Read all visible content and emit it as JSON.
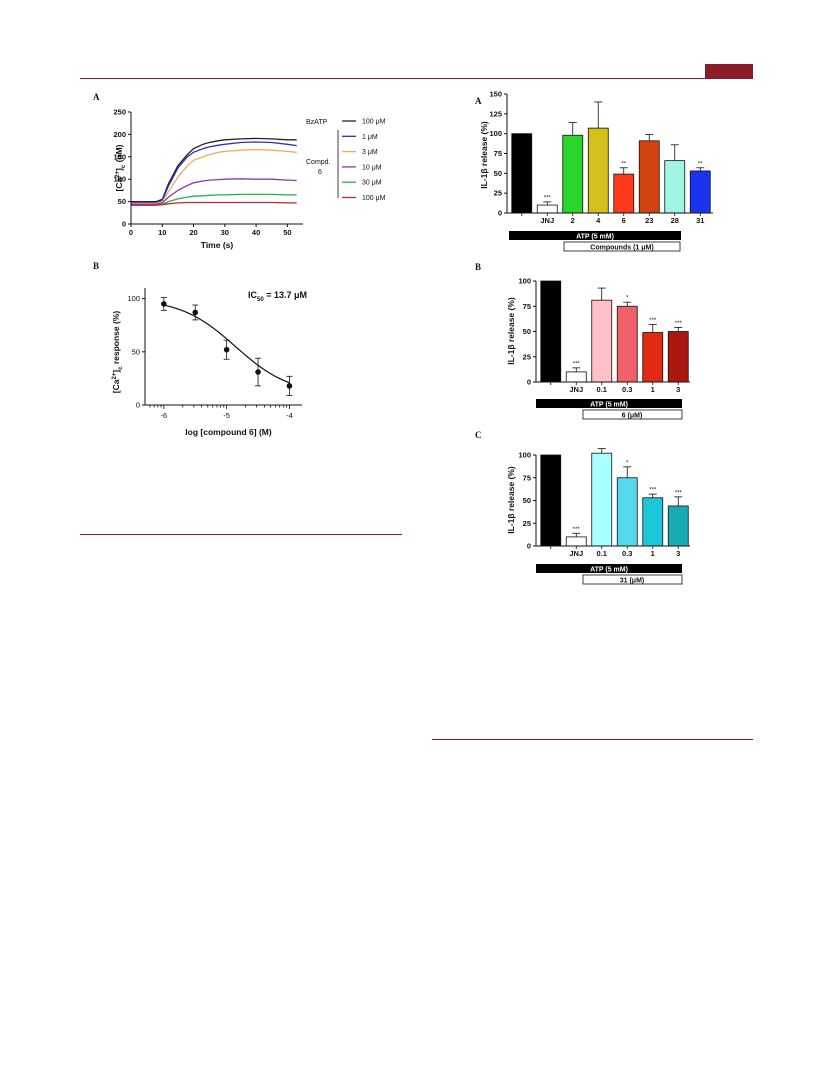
{
  "left_figure": {
    "panel_a": {
      "label": "A",
      "legend": {
        "agonist_label": "BzATP",
        "compound_label_line1": "Compd.",
        "compound_label_line2": "6",
        "entries": [
          "100 μM",
          "1 μM",
          "3 μM",
          "10 μM",
          "30 μM",
          "100 μM"
        ]
      }
    },
    "panel_b": {
      "label": "B",
      "annotation": "IC",
      "annotation_sub": "50",
      "annotation_value": " = 13.7 μM"
    }
  },
  "right_figure": {
    "panel_a": {
      "label": "A",
      "atp_bar": "ATP (5 mM)",
      "compounds_bar": "Compounds (1 μM)"
    },
    "panel_b": {
      "label": "B",
      "atp_bar": "ATP (5 mM)",
      "compound_bar": "6 (μM)"
    },
    "panel_c": {
      "label": "C",
      "atp_bar": "ATP (5 mM)",
      "compound_bar": "31 (μM)"
    }
  },
  "chart_data": [
    {
      "id": "calcium-timecourse",
      "type": "line",
      "title": "",
      "xlabel": "Time  (s)",
      "ylabel": "[Ca2+]c (nM)",
      "xlim": [
        0,
        55
      ],
      "ylim": [
        0,
        250
      ],
      "xticks": [
        0,
        10,
        20,
        30,
        40,
        50
      ],
      "yticks": [
        0,
        50,
        100,
        150,
        200,
        250
      ],
      "grid": false,
      "legend": "right",
      "series": [
        {
          "name": "BzATP 100 μM",
          "color": "#222222",
          "x": [
            0,
            8,
            10,
            12,
            15,
            18,
            20,
            23,
            25,
            28,
            30,
            35,
            40,
            45,
            50,
            53
          ],
          "y": [
            50,
            50,
            55,
            90,
            130,
            155,
            168,
            178,
            182,
            186,
            188,
            190,
            191,
            190,
            188,
            188
          ]
        },
        {
          "name": "Compd. 6 1 μM",
          "color": "#2d2fa8",
          "x": [
            0,
            8,
            10,
            12,
            15,
            18,
            20,
            23,
            25,
            28,
            30,
            35,
            40,
            45,
            50,
            53
          ],
          "y": [
            48,
            48,
            53,
            85,
            125,
            150,
            160,
            168,
            172,
            176,
            178,
            182,
            183,
            182,
            178,
            175
          ]
        },
        {
          "name": "Compd. 6 3 μM",
          "color": "#f0a860",
          "x": [
            0,
            8,
            10,
            12,
            15,
            18,
            20,
            23,
            25,
            28,
            30,
            35,
            40,
            45,
            50,
            53
          ],
          "y": [
            46,
            46,
            50,
            72,
            105,
            130,
            142,
            150,
            155,
            160,
            162,
            165,
            166,
            165,
            162,
            160
          ]
        },
        {
          "name": "Compd. 6 10 μM",
          "color": "#8e3aa8",
          "x": [
            0,
            8,
            10,
            12,
            15,
            18,
            20,
            23,
            25,
            28,
            30,
            35,
            40,
            45,
            50,
            53
          ],
          "y": [
            44,
            44,
            47,
            60,
            75,
            86,
            92,
            96,
            98,
            99,
            100,
            101,
            100,
            100,
            98,
            97
          ]
        },
        {
          "name": "Compd. 6 30 μM",
          "color": "#22b14c",
          "x": [
            0,
            8,
            10,
            12,
            15,
            18,
            20,
            23,
            25,
            28,
            30,
            35,
            40,
            45,
            50,
            53
          ],
          "y": [
            42,
            42,
            44,
            50,
            56,
            60,
            62,
            63,
            64,
            65,
            65,
            66,
            66,
            66,
            65,
            65
          ]
        },
        {
          "name": "Compd. 6 100 μM",
          "color": "#c0283a",
          "x": [
            0,
            8,
            10,
            12,
            15,
            18,
            20,
            23,
            25,
            28,
            30,
            35,
            40,
            45,
            50,
            53
          ],
          "y": [
            42,
            42,
            43,
            45,
            47,
            48,
            48,
            48,
            48,
            48,
            48,
            48,
            48,
            48,
            47,
            47
          ]
        }
      ]
    },
    {
      "id": "dose-response",
      "type": "scatter",
      "title": "",
      "xlabel": "log [compound 6] (M)",
      "ylabel": "[Ca2+]c response (%)",
      "xlim": [
        -6.3,
        -3.8
      ],
      "ylim": [
        0,
        110
      ],
      "xticks": [
        -6,
        -5,
        -4
      ],
      "yticks": [
        0,
        50,
        100
      ],
      "x": [
        -6,
        -5.5,
        -5,
        -4.5,
        -4
      ],
      "y": [
        95,
        87,
        52,
        31,
        18
      ],
      "err": [
        6,
        7,
        9,
        13,
        9
      ],
      "fit": {
        "bottom": 10,
        "top": 100,
        "logIC50": -4.86,
        "hill": 1
      }
    },
    {
      "id": "il1b-compounds",
      "type": "bar",
      "title": "",
      "ylabel": "IL-1β release (%)",
      "ylim": [
        0,
        150
      ],
      "yticks": [
        0,
        25,
        50,
        75,
        100,
        125,
        150
      ],
      "categories": [
        "",
        "JNJ",
        "2",
        "4",
        "6",
        "23",
        "28",
        "31"
      ],
      "values": [
        100,
        10,
        98,
        107,
        49,
        91,
        66,
        53
      ],
      "err": [
        0,
        4,
        16,
        33,
        8,
        8,
        20,
        4
      ],
      "colors": [
        "#000000",
        "#ffffff",
        "#2ad62a",
        "#d4c01a",
        "#ff3a1a",
        "#d44412",
        "#a0f5e4",
        "#1a33ee"
      ],
      "significance": [
        "",
        "***",
        "",
        "",
        "**",
        "",
        "",
        "**"
      ]
    },
    {
      "id": "il1b-compound-6",
      "type": "bar",
      "title": "",
      "ylabel": "IL-1β release (%)",
      "ylim": [
        0,
        100
      ],
      "yticks": [
        0,
        25,
        50,
        75,
        100
      ],
      "categories": [
        "",
        "JNJ",
        "0.1",
        "0.3",
        "1",
        "3"
      ],
      "values": [
        100,
        10,
        81,
        75,
        49,
        50
      ],
      "err": [
        0,
        4,
        12,
        4,
        8,
        4
      ],
      "colors": [
        "#000000",
        "#ffffff",
        "#ffc0c8",
        "#f06068",
        "#e02a14",
        "#aa1810"
      ],
      "significance": [
        "",
        "***",
        "",
        "*",
        "***",
        "***"
      ]
    },
    {
      "id": "il1b-compound-31",
      "type": "bar",
      "title": "",
      "ylabel": "IL-1β release (%)",
      "ylim": [
        0,
        100
      ],
      "yticks": [
        0,
        25,
        50,
        75,
        100
      ],
      "categories": [
        "",
        "JNJ",
        "0.1",
        "0.3",
        "1",
        "3"
      ],
      "values": [
        100,
        10,
        102,
        75,
        53,
        44
      ],
      "err": [
        0,
        4,
        5,
        12,
        4,
        10
      ],
      "colors": [
        "#000000",
        "#ffffff",
        "#aaffff",
        "#55d8ee",
        "#1cc8d8",
        "#19aab2"
      ],
      "significance": [
        "",
        "***",
        "",
        "*",
        "***",
        "***"
      ]
    }
  ]
}
